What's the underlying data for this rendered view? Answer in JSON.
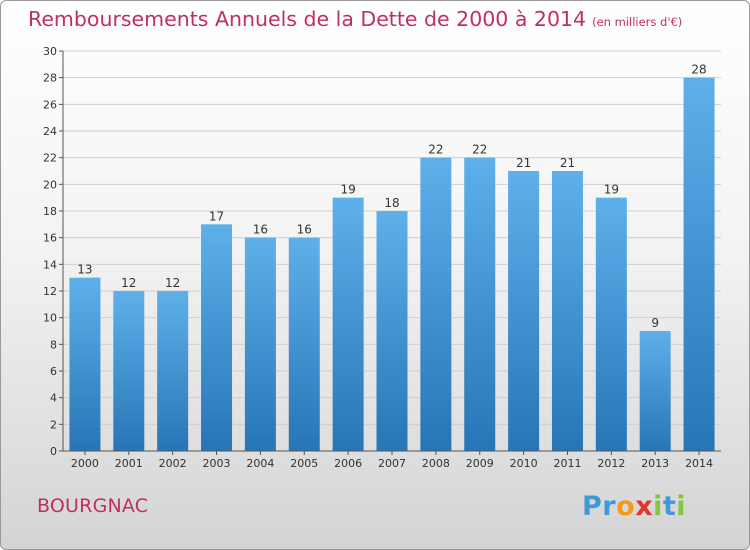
{
  "title": "Remboursements Annuels de la Dette de 2000 à 2014",
  "unit": "(en milliers d'€)",
  "commune": "BOURGNAC",
  "logo": [
    "P",
    "r",
    "o",
    "x",
    "i",
    "t",
    "i"
  ],
  "colors": {
    "title": "#c0305e",
    "bar_light": "#5eb0ea",
    "bar_dark": "#2775b6",
    "grid": "#d0d0d0"
  },
  "chart_data": {
    "type": "bar",
    "title": "Remboursements Annuels de la Dette de 2000 à 2014",
    "xlabel": "",
    "ylabel": "",
    "categories": [
      "2000",
      "2001",
      "2002",
      "2003",
      "2004",
      "2005",
      "2006",
      "2007",
      "2008",
      "2009",
      "2010",
      "2011",
      "2012",
      "2013",
      "2014"
    ],
    "values": [
      13,
      12,
      12,
      17,
      16,
      16,
      19,
      18,
      22,
      22,
      21,
      21,
      19,
      9,
      28
    ],
    "ylim": [
      0,
      30
    ],
    "yticks": [
      0,
      2,
      4,
      6,
      8,
      10,
      12,
      14,
      16,
      18,
      20,
      22,
      24,
      26,
      28,
      30
    ],
    "grid": true
  }
}
